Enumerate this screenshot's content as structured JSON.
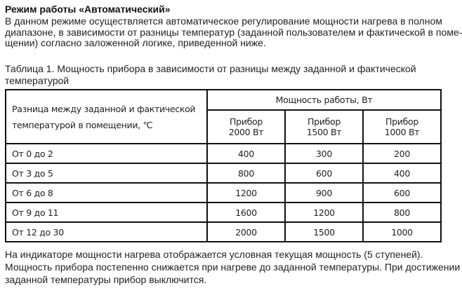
{
  "title": "Режим работы «Автоматический»",
  "intro": [
    "В данном режиме осуществляется автоматическое регулирование мощности нагрева в полном",
    "диапазоне, в зависимости от разницы температур (заданной пользователем и фактической в поме-",
    "щении) согласно заложенной логике, приведенной ниже."
  ],
  "caption": [
    "Таблица 1. Мощность прибора в зависимости от разницы между заданной и фактической",
    "температурой"
  ],
  "table": {
    "row_header": [
      "Разница между заданной и фактической",
      "температурой в помещении, ℃"
    ],
    "group_header": "Мощность работы, Вт",
    "columns": [
      [
        "Прибор",
        "2000 Вт"
      ],
      [
        "Прибор",
        "1500 Вт"
      ],
      [
        "Прибор",
        "1000 Вт"
      ]
    ],
    "rows": [
      {
        "label": "От 0 до 2",
        "values": [
          "400",
          "300",
          "200"
        ]
      },
      {
        "label": "От 3 до 5",
        "values": [
          "800",
          "600",
          "400"
        ]
      },
      {
        "label": "От 6 до 8",
        "values": [
          "1200",
          "900",
          "600"
        ]
      },
      {
        "label": "От 9 до 11",
        "values": [
          "1600",
          "1200",
          "800"
        ]
      },
      {
        "label": "От 12 до 30",
        "values": [
          "2000",
          "1500",
          "1000"
        ]
      }
    ]
  },
  "outro": [
    "На индикаторе мощности нагрева отображается условная текущая мощность (5 ступеней).",
    "Мощность прибора постепенно снижается при нагреве до заданной температуры. При достижении",
    "заданной температуры прибор выключится."
  ]
}
